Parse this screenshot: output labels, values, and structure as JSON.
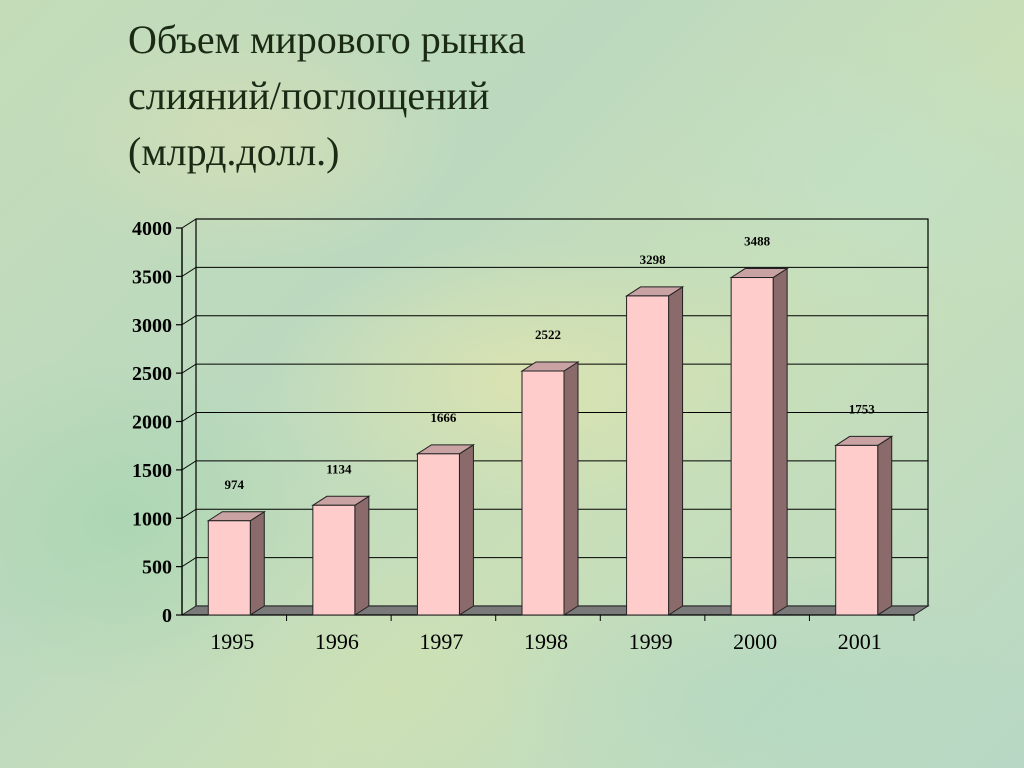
{
  "title_lines": [
    "Объем мирового рынка",
    "слияний/поглощений",
    "(млрд.долл.)"
  ],
  "colors": {
    "bar_front": "#ffcccc",
    "bar_side": "#8a6a6a",
    "bar_top": "#c9a3a3",
    "floor": "#7a7a7a",
    "grid": "#000000"
  },
  "chart_data": {
    "type": "bar",
    "title": "Объем мирового рынка слияний/поглощений (млрд.долл.)",
    "categories": [
      "1995",
      "1996",
      "1997",
      "1998",
      "1999",
      "2000",
      "2001"
    ],
    "values": [
      974,
      1134,
      1666,
      2522,
      3298,
      3488,
      1753
    ],
    "data_labels": [
      "974",
      "1134",
      "1666",
      "2522",
      "3298",
      "3488",
      "1753"
    ],
    "yticks": [
      "0",
      "500",
      "1000",
      "1500",
      "2000",
      "2500",
      "3000",
      "3500",
      "4000"
    ],
    "ylim": [
      0,
      4000
    ],
    "xlabel": "",
    "ylabel": "",
    "grid": true,
    "legend": "none",
    "style": "3d"
  }
}
